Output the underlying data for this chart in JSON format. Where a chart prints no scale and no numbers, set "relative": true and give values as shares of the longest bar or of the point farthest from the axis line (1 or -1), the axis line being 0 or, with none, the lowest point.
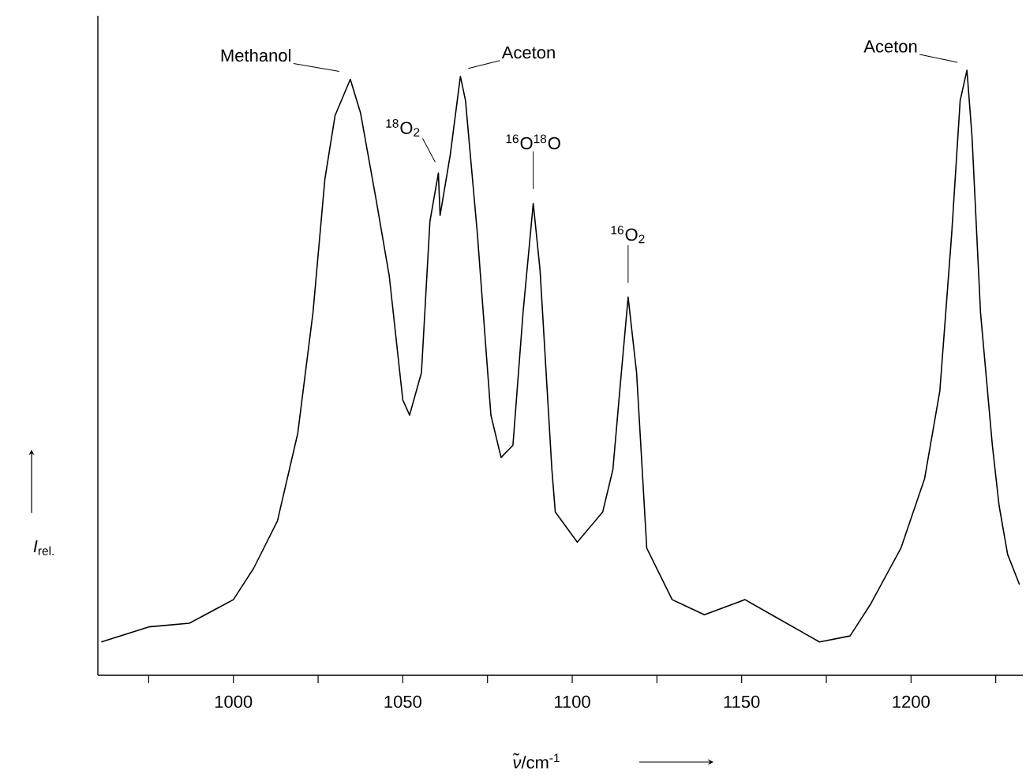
{
  "chart_data": {
    "type": "line",
    "relative": true,
    "color": "#000000",
    "xlabel": "*ν̃*/cm$^{-1}$",
    "ylabel": "*I*$_{rel.}$",
    "xlim": [
      960,
      1233
    ],
    "xticks": [
      {
        "value": 975,
        "label": null
      },
      1000,
      {
        "value": 1025,
        "label": null
      },
      1050,
      {
        "value": 1075,
        "label": null
      },
      1100,
      {
        "value": 1125,
        "label": null
      },
      1150,
      {
        "value": 1175,
        "label": null
      },
      1200,
      {
        "value": 1225,
        "label": null
      }
    ],
    "x": [
      961,
      975,
      987,
      1000,
      1006,
      1013,
      1019,
      1023.5,
      1027,
      1030,
      1034.5,
      1037.5,
      1042,
      1046,
      1050,
      1052,
      1055.5,
      1058,
      1060.5,
      1061,
      1064,
      1067,
      1068.5,
      1072,
      1076,
      1079,
      1082.5,
      1085.5,
      1088.5,
      1090.5,
      1094,
      1095,
      1101.5,
      1109,
      1112,
      1114.5,
      1116.5,
      1119,
      1122,
      1129.5,
      1139,
      1151,
      1162,
      1173,
      1182,
      1188,
      1197,
      1204,
      1208.5,
      1212,
      1214.5,
      1216.5,
      1218,
      1220.5,
      1224,
      1226,
      1228.5,
      1232
    ],
    "values": [
      0.055,
      0.08,
      0.086,
      0.125,
      0.177,
      0.255,
      0.4,
      0.6,
      0.82,
      0.925,
      0.985,
      0.93,
      0.79,
      0.66,
      0.455,
      0.43,
      0.5,
      0.75,
      0.83,
      0.76,
      0.86,
      0.99,
      0.95,
      0.73,
      0.43,
      0.36,
      0.38,
      0.6,
      0.78,
      0.67,
      0.34,
      0.27,
      0.22,
      0.27,
      0.34,
      0.5,
      0.625,
      0.5,
      0.21,
      0.125,
      0.1,
      0.125,
      0.09,
      0.055,
      0.065,
      0.117,
      0.21,
      0.325,
      0.47,
      0.73,
      0.95,
      1.0,
      0.89,
      0.6,
      0.38,
      0.28,
      0.2,
      0.15
    ],
    "annotations": [
      {
        "text": "Methanol",
        "x": 1034.5,
        "y": 0.985
      },
      {
        "text": "$^{18}$O$_{2}$",
        "x": 1060.5,
        "y": 0.83
      },
      {
        "text": "Aceton",
        "x": 1067,
        "y": 0.99
      },
      {
        "text": "$^{16}$O$^{18}$O",
        "x": 1088.5,
        "y": 0.78
      },
      {
        "text": "$^{16}$O$_{2}$",
        "x": 1116.5,
        "y": 0.625
      },
      {
        "text": "Aceton",
        "x": 1216.5,
        "y": 1.0
      }
    ]
  }
}
